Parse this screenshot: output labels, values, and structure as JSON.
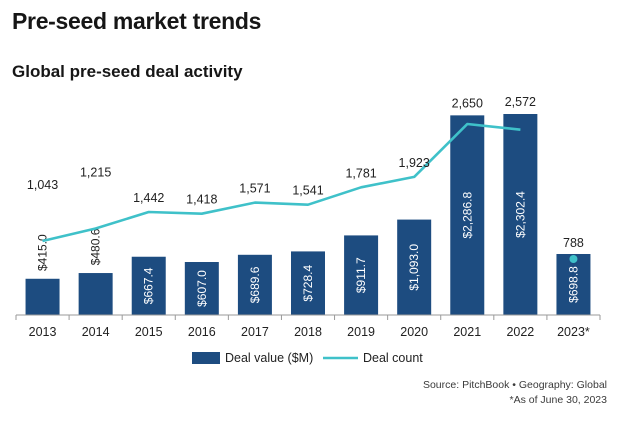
{
  "header": {
    "title": "Pre-seed market trends",
    "subtitle": "Global pre-seed deal activity"
  },
  "colors": {
    "bar": "#1d4c80",
    "line": "#3fc1c9"
  },
  "chart_data": {
    "type": "bar",
    "title": "Global pre-seed deal activity",
    "categories": [
      "2013",
      "2014",
      "2015",
      "2016",
      "2017",
      "2018",
      "2019",
      "2020",
      "2021",
      "2022",
      "2023*"
    ],
    "series": [
      {
        "name": "Deal value ($M)",
        "type": "bar",
        "values": [
          415.0,
          480.6,
          667.4,
          607.0,
          689.6,
          728.4,
          911.7,
          1093.0,
          2286.8,
          2302.4,
          698.8
        ],
        "labels": [
          "$415.0",
          "$480.6",
          "$667.4",
          "$607.0",
          "$689.6",
          "$728.4",
          "$911.7",
          "$1,093.0",
          "$2,286.8",
          "$2,302.4",
          "$698.8"
        ]
      },
      {
        "name": "Deal count",
        "type": "line",
        "values": [
          1043,
          1215,
          1442,
          1418,
          1571,
          1541,
          1781,
          1923,
          2650,
          2572,
          788
        ],
        "labels": [
          "1,043",
          "1,215",
          "1,442",
          "1,418",
          "1,571",
          "1,541",
          "1,781",
          "1,923",
          "2,650",
          "2,572",
          "788"
        ],
        "last_point_separate": true
      }
    ],
    "legend": [
      "Deal value ($M)",
      "Deal count"
    ],
    "legend_position": "bottom-center",
    "grid": false,
    "ylim": [
      0,
      2400
    ]
  },
  "footer": {
    "source": "Source: PitchBook • Geography: Global",
    "note": "*As of June 30, 2023"
  }
}
